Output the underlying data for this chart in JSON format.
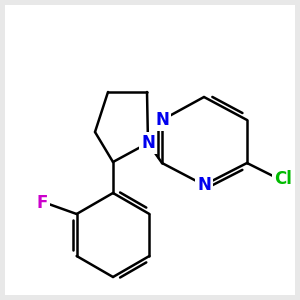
{
  "bg_color": "#e8e8e8",
  "bond_color": "#000000",
  "bond_width": 1.8,
  "atom_colors": {
    "N": "#0000ee",
    "Cl": "#00bb00",
    "F": "#cc00cc"
  },
  "font_size": 12,
  "white_bg": "#ffffff"
}
